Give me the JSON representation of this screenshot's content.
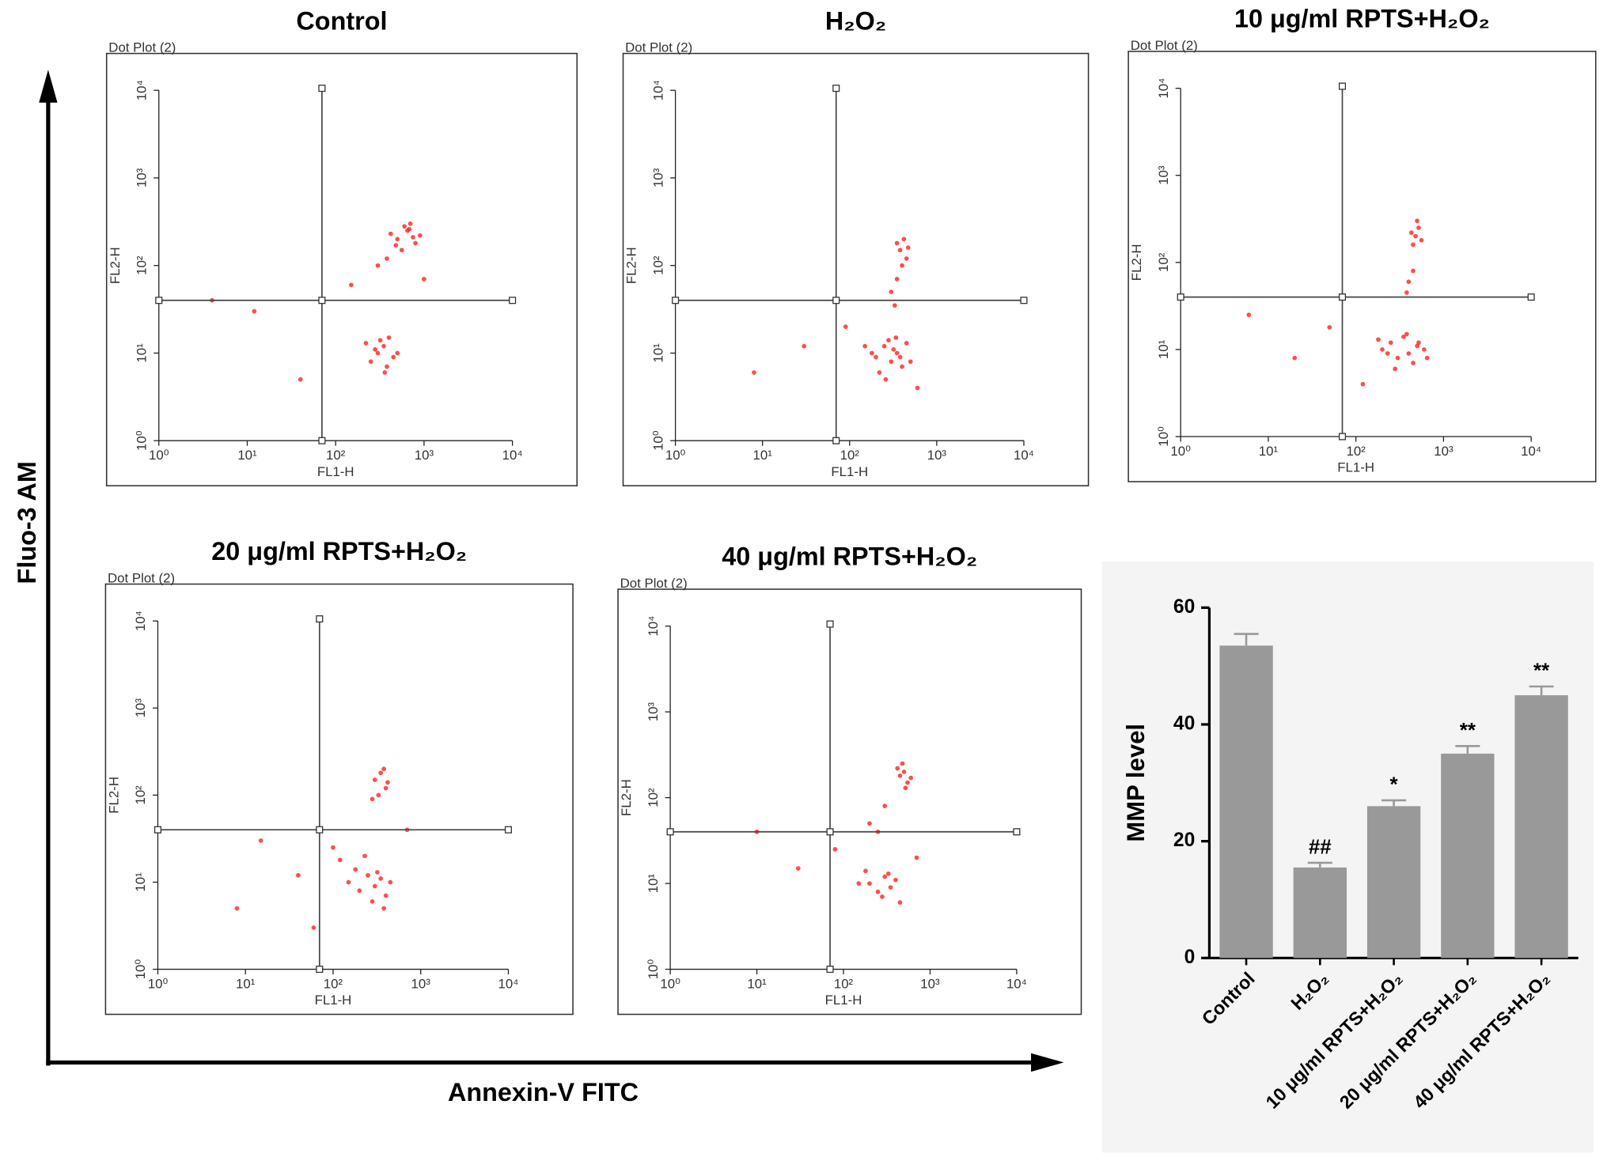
{
  "figure": {
    "y_label": "Fluo-3 AM",
    "x_label": "Annexin-V FITC"
  },
  "chart_data": [
    {
      "type": "scatter",
      "title": "Control",
      "subtitle": "Dot Plot (2)",
      "xlabel": "FL1-H",
      "ylabel": "FL2-H",
      "log_scale": true,
      "color": "#ff2020",
      "xlim": [
        1,
        10000
      ],
      "ylim": [
        1,
        10000
      ],
      "xticks": [
        {
          "value": 1,
          "label": "10⁰"
        },
        {
          "value": 10,
          "label": "10¹"
        },
        {
          "value": 100,
          "label": "10²"
        },
        {
          "value": 1000,
          "label": "10³"
        },
        {
          "value": 10000,
          "label": "10⁴"
        }
      ],
      "yticks": [
        {
          "value": 1,
          "label": "10⁰"
        },
        {
          "value": 10,
          "label": "10¹"
        },
        {
          "value": 100,
          "label": "10²"
        },
        {
          "value": 1000,
          "label": "10³"
        },
        {
          "value": 10000,
          "label": "10⁴"
        }
      ],
      "quadrant": [
        70,
        40
      ],
      "x": [
        500,
        650,
        800,
        420,
        700,
        560,
        900,
        380,
        600,
        750,
        300,
        480,
        680,
        300,
        350,
        250,
        400,
        450,
        280,
        380,
        320,
        500,
        220,
        360,
        4,
        12,
        150,
        40,
        1000
      ],
      "y": [
        200,
        250,
        180,
        230,
        300,
        150,
        220,
        120,
        280,
        210,
        100,
        170,
        260,
        10,
        12,
        8,
        15,
        9,
        11,
        7,
        14,
        10,
        13,
        6,
        40,
        30,
        60,
        5,
        70
      ]
    },
    {
      "type": "scatter",
      "title": "H₂O₂",
      "subtitle": "Dot Plot (2)",
      "xlabel": "FL1-H",
      "ylabel": "FL2-H",
      "log_scale": true,
      "color": "#ff2020",
      "xlim": [
        1,
        10000
      ],
      "ylim": [
        1,
        10000
      ],
      "xticks": [
        {
          "value": 1,
          "label": "10⁰"
        },
        {
          "value": 10,
          "label": "10¹"
        },
        {
          "value": 100,
          "label": "10²"
        },
        {
          "value": 1000,
          "label": "10³"
        },
        {
          "value": 10000,
          "label": "10⁴"
        }
      ],
      "yticks": [
        {
          "value": 1,
          "label": "10⁰"
        },
        {
          "value": 10,
          "label": "10¹"
        },
        {
          "value": 100,
          "label": "10²"
        },
        {
          "value": 1000,
          "label": "10³"
        },
        {
          "value": 10000,
          "label": "10⁴"
        }
      ],
      "quadrant": [
        70,
        40
      ],
      "x": [
        380,
        420,
        450,
        350,
        400,
        470,
        300,
        350,
        330,
        200,
        250,
        300,
        350,
        400,
        280,
        220,
        320,
        380,
        450,
        180,
        260,
        340,
        500,
        150,
        30,
        8,
        90,
        600
      ],
      "y": [
        150,
        200,
        120,
        180,
        100,
        160,
        50,
        70,
        35,
        9,
        12,
        8,
        10,
        7,
        14,
        6,
        11,
        9,
        13,
        10,
        5,
        15,
        8,
        12,
        12,
        6,
        20,
        4
      ]
    },
    {
      "type": "scatter",
      "title": "10 μg/ml RPTS+H₂O₂",
      "subtitle": "Dot Plot (2)",
      "xlabel": "FL1-H",
      "ylabel": "FL2-H",
      "log_scale": true,
      "color": "#ff2020",
      "xlim": [
        1,
        10000
      ],
      "ylim": [
        1,
        10000
      ],
      "xticks": [
        {
          "value": 1,
          "label": "10⁰"
        },
        {
          "value": 10,
          "label": "10¹"
        },
        {
          "value": 100,
          "label": "10²"
        },
        {
          "value": 1000,
          "label": "10³"
        },
        {
          "value": 10000,
          "label": "10⁴"
        }
      ],
      "yticks": [
        {
          "value": 1,
          "label": "10⁰"
        },
        {
          "value": 10,
          "label": "10¹"
        },
        {
          "value": 100,
          "label": "10²"
        },
        {
          "value": 1000,
          "label": "10³"
        },
        {
          "value": 10000,
          "label": "10⁴"
        }
      ],
      "quadrant": [
        70,
        40
      ],
      "x": [
        480,
        520,
        450,
        560,
        500,
        430,
        400,
        450,
        380,
        200,
        250,
        300,
        400,
        500,
        600,
        350,
        450,
        180,
        280,
        520,
        380,
        230,
        650,
        20,
        6,
        120,
        50
      ],
      "y": [
        200,
        250,
        160,
        180,
        300,
        220,
        60,
        80,
        45,
        10,
        12,
        8,
        9,
        11,
        10,
        14,
        7,
        13,
        6,
        12,
        15,
        9,
        8,
        8,
        25,
        4,
        18
      ]
    },
    {
      "type": "scatter",
      "title": "20 μg/ml RPTS+H₂O₂",
      "subtitle": "Dot Plot (2)",
      "xlabel": "FL1-H",
      "ylabel": "FL2-H",
      "log_scale": true,
      "color": "#ff2020",
      "xlim": [
        1,
        10000
      ],
      "ylim": [
        1,
        10000
      ],
      "xticks": [
        {
          "value": 1,
          "label": "10⁰"
        },
        {
          "value": 10,
          "label": "10¹"
        },
        {
          "value": 100,
          "label": "10²"
        },
        {
          "value": 1000,
          "label": "10³"
        },
        {
          "value": 10000,
          "label": "10⁴"
        }
      ],
      "yticks": [
        {
          "value": 1,
          "label": "10⁰"
        },
        {
          "value": 10,
          "label": "10¹"
        },
        {
          "value": 100,
          "label": "10²"
        },
        {
          "value": 1000,
          "label": "10³"
        },
        {
          "value": 10000,
          "label": "10⁴"
        }
      ],
      "quadrant": [
        70,
        40
      ],
      "x": [
        300,
        350,
        400,
        380,
        330,
        420,
        280,
        150,
        200,
        250,
        300,
        350,
        400,
        180,
        280,
        320,
        450,
        120,
        230,
        380,
        100,
        15,
        40,
        8,
        700,
        60
      ],
      "y": [
        150,
        180,
        120,
        200,
        100,
        140,
        90,
        10,
        8,
        12,
        9,
        11,
        7,
        14,
        6,
        13,
        10,
        18,
        20,
        5,
        25,
        30,
        12,
        5,
        40,
        3
      ]
    },
    {
      "type": "scatter",
      "title": "40 μg/ml RPTS+H₂O₂",
      "subtitle": "Dot Plot (2)",
      "xlabel": "FL1-H",
      "ylabel": "FL2-H",
      "log_scale": true,
      "color": "#ff2020",
      "xlim": [
        1,
        10000
      ],
      "ylim": [
        1,
        10000
      ],
      "xticks": [
        {
          "value": 1,
          "label": "10⁰"
        },
        {
          "value": 10,
          "label": "10¹"
        },
        {
          "value": 100,
          "label": "10²"
        },
        {
          "value": 1000,
          "label": "10³"
        },
        {
          "value": 10000,
          "label": "10⁴"
        }
      ],
      "yticks": [
        {
          "value": 1,
          "label": "10⁰"
        },
        {
          "value": 10,
          "label": "10¹"
        },
        {
          "value": 100,
          "label": "10²"
        },
        {
          "value": 1000,
          "label": "10³"
        },
        {
          "value": 10000,
          "label": "10⁴"
        }
      ],
      "quadrant": [
        70,
        40
      ],
      "x": [
        450,
        500,
        550,
        420,
        600,
        480,
        520,
        300,
        200,
        250,
        200,
        250,
        300,
        350,
        400,
        180,
        280,
        330,
        450,
        150,
        30,
        10,
        80,
        700
      ],
      "y": [
        180,
        200,
        150,
        220,
        170,
        250,
        130,
        80,
        50,
        40,
        10,
        8,
        12,
        9,
        11,
        14,
        7,
        13,
        6,
        10,
        15,
        40,
        25,
        20
      ]
    },
    {
      "type": "bar",
      "ylabel": "MMP level",
      "color": "#999999",
      "categories": [
        "Control",
        "H₂O₂",
        "10 μg/ml RPTS+H₂O₂",
        "20 μg/ml RPTS+H₂O₂",
        "40 μg/ml RPTS+H₂O₂"
      ],
      "values": [
        53.5,
        15.5,
        26,
        35,
        45
      ],
      "errors": [
        2,
        0.8,
        1,
        1.3,
        1.5
      ],
      "annotations": [
        null,
        "##",
        "*",
        "**",
        "**"
      ],
      "ylim": [
        0,
        60
      ],
      "yticks": [
        0,
        20,
        40,
        60
      ]
    }
  ]
}
